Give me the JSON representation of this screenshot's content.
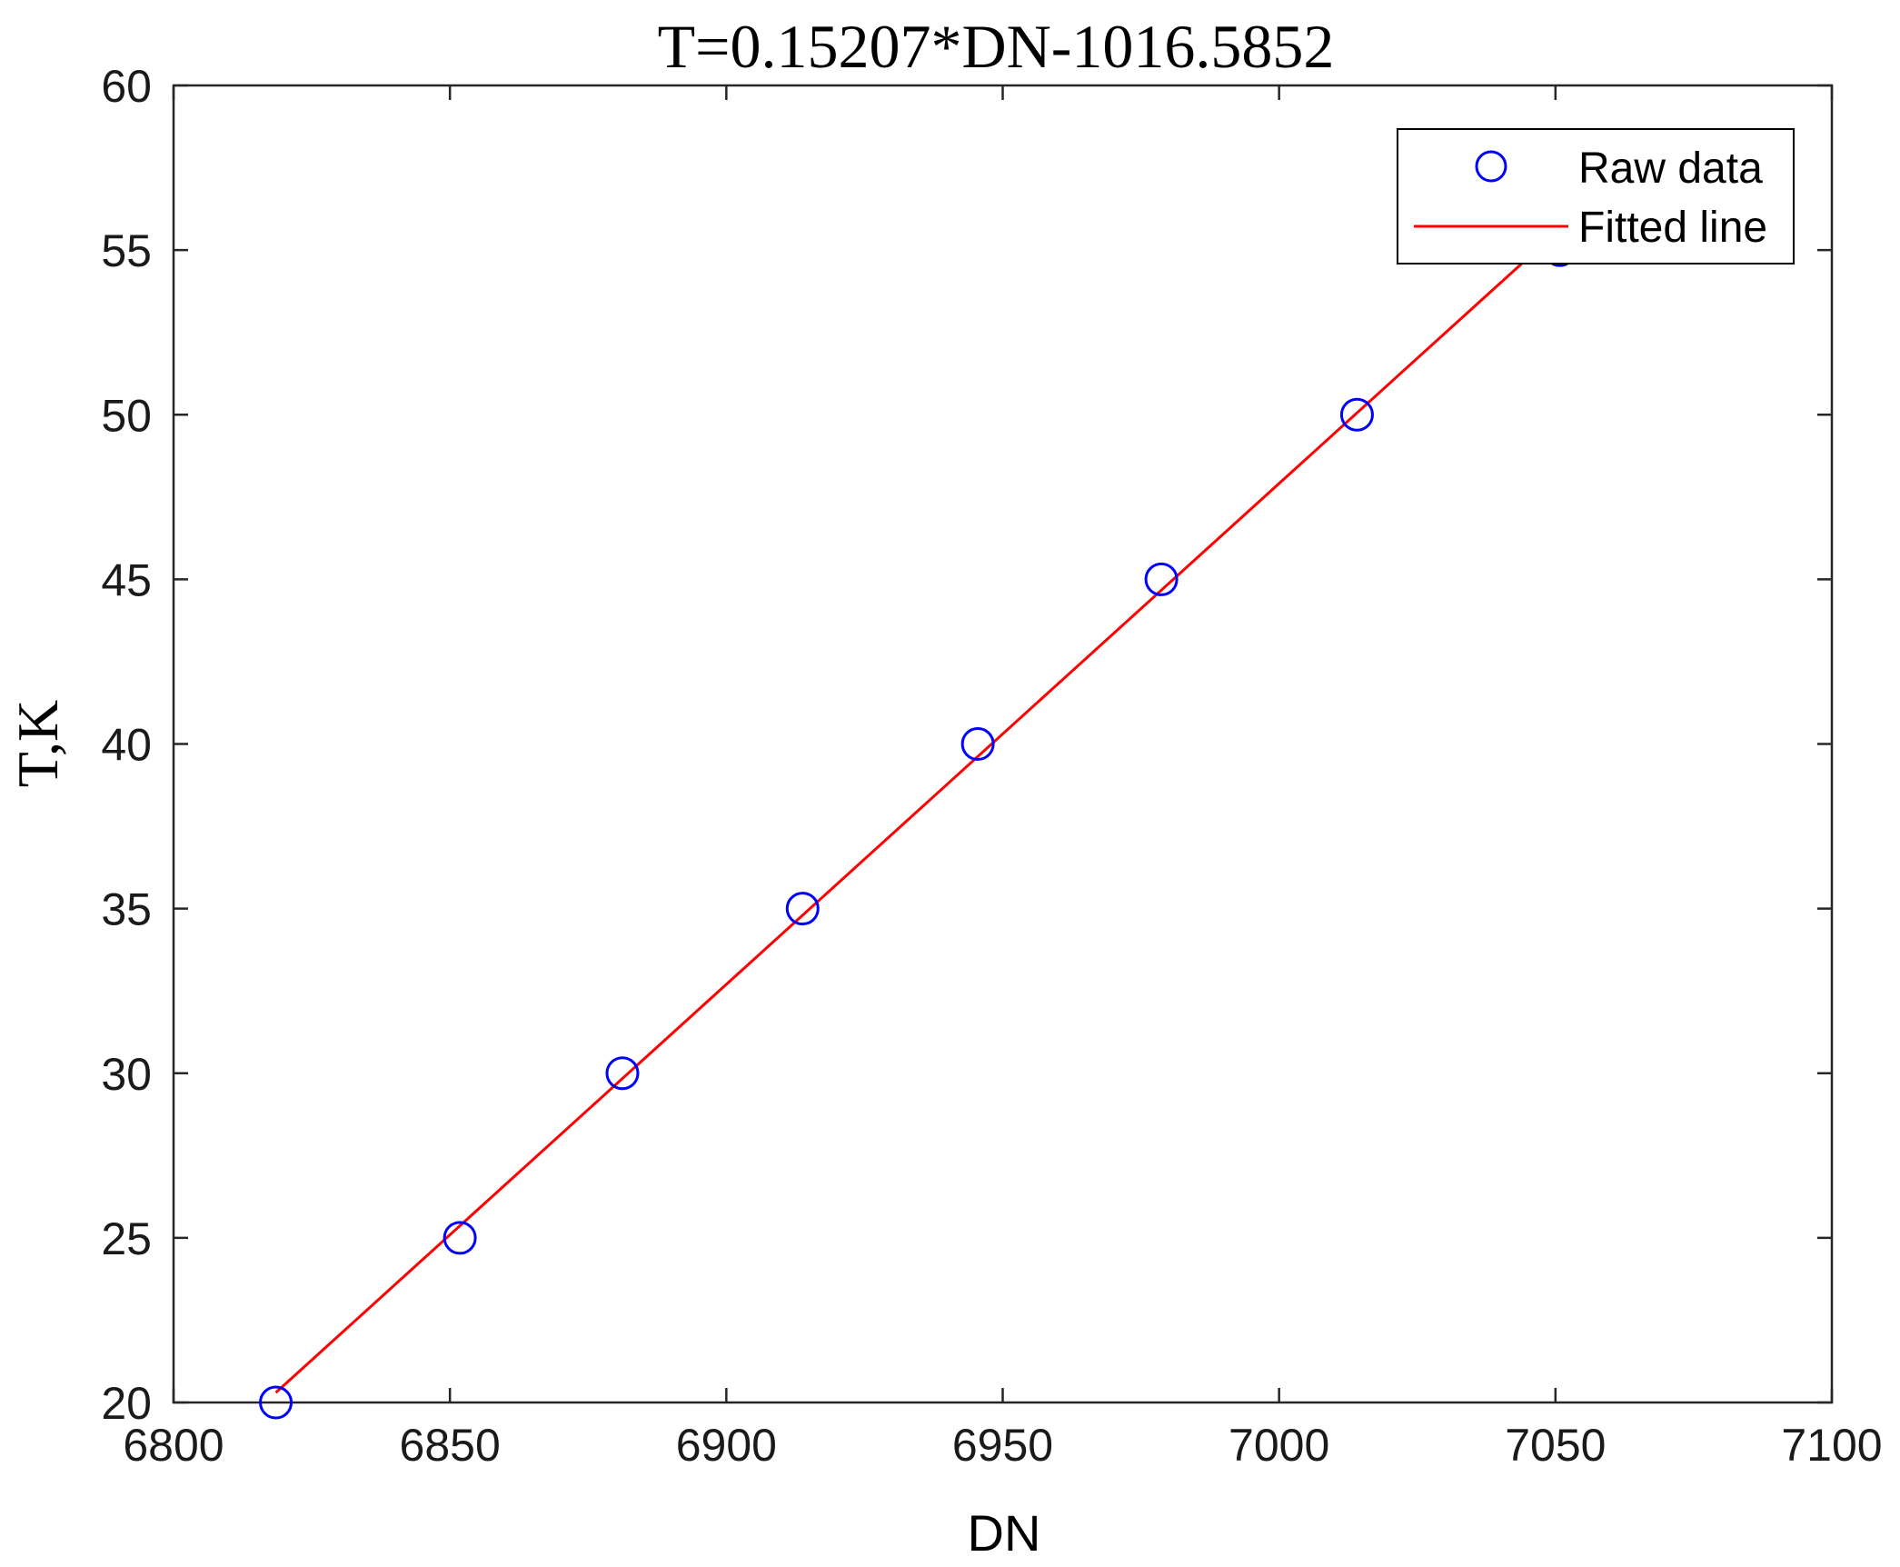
{
  "chart_data": {
    "type": "scatter",
    "title": "T=0.15207*DN-1016.5852",
    "xlabel": "DN",
    "ylabel": "T,K",
    "xlim": [
      6800,
      7100
    ],
    "ylim": [
      20,
      60
    ],
    "xticks": [
      "6800",
      "6850",
      "6900",
      "6950",
      "7000",
      "7050",
      "7100"
    ],
    "yticks": [
      "20",
      "25",
      "30",
      "35",
      "40",
      "45",
      "50",
      "55",
      "60"
    ],
    "grid": false,
    "legend_position": "top-right",
    "series": [
      {
        "name": "Raw data",
        "kind": "markers",
        "marker": "circle",
        "color": "#0000ff",
        "x": [
          6818.5,
          6851.8,
          6881.2,
          6913.8,
          6945.5,
          6978.7,
          7014.1,
          7050.8
        ],
        "y": [
          20,
          25,
          30,
          35,
          40,
          45,
          50,
          55
        ]
      },
      {
        "name": "Fitted line",
        "kind": "line",
        "color": "#ff0000",
        "x": [
          6818.5,
          7051.2
        ],
        "y": [
          20.3,
          55.7
        ]
      }
    ]
  }
}
